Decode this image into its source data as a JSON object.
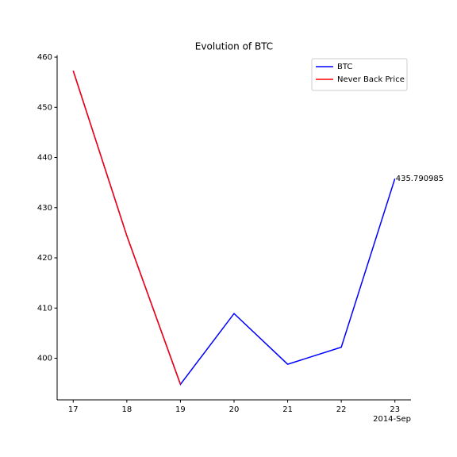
{
  "chart_data": {
    "type": "line",
    "title": "Evolution of BTC",
    "x": [
      17,
      18,
      19,
      20,
      21,
      22,
      23
    ],
    "series": [
      {
        "name": "BTC",
        "color": "#0000ff",
        "values": [
          457.3,
          424.4,
          394.8,
          408.9,
          398.8,
          402.2,
          435.790985
        ]
      },
      {
        "name": "Never Back Price",
        "color": "#ff0000",
        "values": [
          457.3,
          424.4,
          394.8,
          null,
          null,
          null,
          null
        ]
      }
    ],
    "xlim": [
      16.7,
      23.3
    ],
    "xticks": [
      17,
      18,
      19,
      20,
      21,
      22,
      23
    ],
    "x_offset_label": "2014-Sep",
    "ylim": [
      391.7,
      460.4
    ],
    "yticks": [
      400,
      410,
      420,
      430,
      440,
      450,
      460
    ],
    "annotation": "435.790985",
    "legend": "upper right",
    "grid": false
  }
}
